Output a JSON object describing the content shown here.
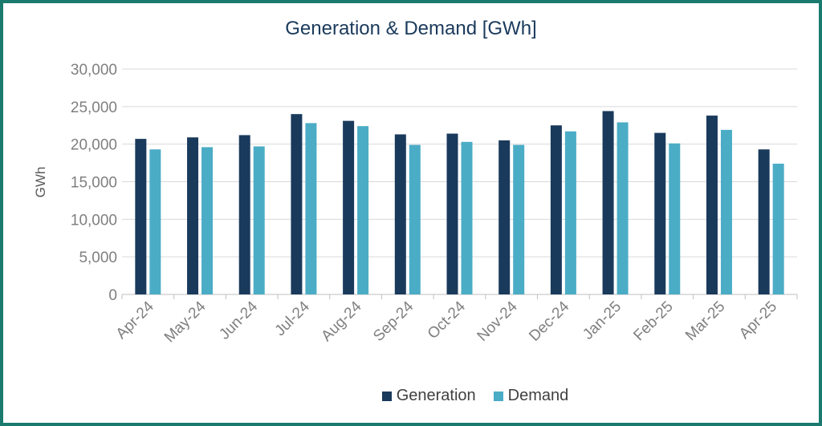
{
  "chart_data": {
    "type": "bar",
    "title": "Generation & Demand [GWh]",
    "ylabel": "GWh",
    "xlabel": "",
    "ylim": [
      0,
      30000
    ],
    "yticks": [
      0,
      5000,
      10000,
      15000,
      20000,
      25000,
      30000
    ],
    "ytick_labels": [
      "0",
      "5,000",
      "10,000",
      "15,000",
      "20,000",
      "25,000",
      "30,000"
    ],
    "categories": [
      "Apr-24",
      "May-24",
      "Jun-24",
      "Jul-24",
      "Aug-24",
      "Sep-24",
      "Oct-24",
      "Nov-24",
      "Dec-24",
      "Jan-25",
      "Feb-25",
      "Mar-25",
      "Apr-25"
    ],
    "series": [
      {
        "name": "Generation",
        "color": "#1a3a5c",
        "values": [
          20700,
          20900,
          21200,
          24000,
          23100,
          21300,
          21400,
          20500,
          22500,
          24400,
          21500,
          23800,
          19300
        ]
      },
      {
        "name": "Demand",
        "color": "#4bacc6",
        "values": [
          19300,
          19600,
          19700,
          22800,
          22400,
          19900,
          20300,
          19900,
          21700,
          22900,
          20100,
          21900,
          17400
        ]
      }
    ],
    "legend_position": "bottom",
    "grid": true
  }
}
